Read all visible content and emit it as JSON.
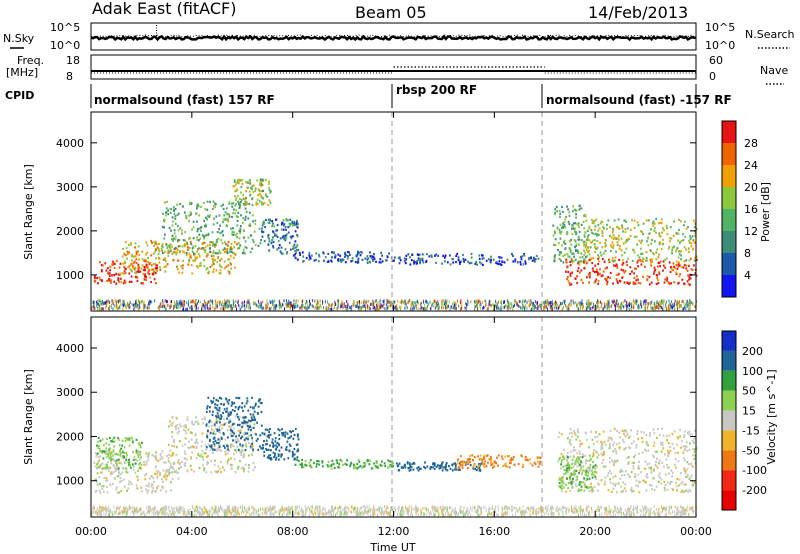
{
  "header": {
    "title": "Adak East (fitACF)",
    "beam": "Beam 05",
    "date": "14/Feb/2013"
  },
  "panels": {
    "nsky_label": "N.Sky",
    "nsearch_label": "N.Search",
    "nsky_ticks": [
      "10^5",
      "10^0"
    ],
    "nsearch_ticks": [
      "10^5",
      "10^0"
    ],
    "freq_label_1": "Freq.",
    "freq_label_2": "[MHz]",
    "freq_ticks": [
      "18",
      "8"
    ],
    "nave_label": "Nave",
    "nave_ticks": [
      "60",
      "0"
    ],
    "cpid_label": "CPID",
    "modes": [
      {
        "name": "normalsound (fast) 157 RF",
        "start_hour": 0,
        "end_hour": 12
      },
      {
        "name": "rbsp 200 RF",
        "start_hour": 12,
        "end_hour": 18
      },
      {
        "name": "normalsound (fast) -157 RF",
        "start_hour": 18,
        "end_hour": 24
      }
    ]
  },
  "chart_data": [
    {
      "type": "heatmap",
      "title": "",
      "xlabel": "Time UT",
      "ylabel": "Slant Range [km]",
      "xlim": [
        0,
        24
      ],
      "ylim": [
        180,
        4700
      ],
      "x_ticks": [
        "00:00",
        "04:00",
        "08:00",
        "12:00",
        "16:00",
        "20:00",
        "00:00"
      ],
      "x_tick_hours": [
        0,
        4,
        8,
        12,
        16,
        20,
        24
      ],
      "y_ticks": [
        1000,
        2000,
        3000,
        4000
      ],
      "colorbar": {
        "label": "Power [dB]",
        "ticks": [
          "4",
          "8",
          "12",
          "16",
          "20",
          "24",
          "28"
        ],
        "range": [
          0,
          32
        ],
        "colors": [
          "#1414f0",
          "#1e5aaa",
          "#3c8c78",
          "#50b464",
          "#8cc83c",
          "#f0a000",
          "#f06400",
          "#e61414"
        ]
      },
      "clusters": [
        {
          "t0": 0.1,
          "t1": 2.6,
          "r0": 820,
          "r1": 1350,
          "power": 29
        },
        {
          "t0": 1.2,
          "t1": 5.8,
          "r0": 1050,
          "r1": 1800,
          "power": 22
        },
        {
          "t0": 2.8,
          "t1": 6.5,
          "r0": 1500,
          "r1": 2700,
          "power": 14
        },
        {
          "t0": 5.6,
          "t1": 7.1,
          "r0": 2600,
          "r1": 3200,
          "power": 17
        },
        {
          "t0": 6.6,
          "t1": 8.2,
          "r0": 1500,
          "r1": 2300,
          "power": 9
        },
        {
          "t0": 8.0,
          "t1": 12.0,
          "r0": 1300,
          "r1": 1550,
          "power": 6
        },
        {
          "t0": 12.0,
          "t1": 17.8,
          "r0": 1250,
          "r1": 1500,
          "power": 5
        },
        {
          "t0": 18.3,
          "t1": 19.6,
          "r0": 1300,
          "r1": 2600,
          "power": 14
        },
        {
          "t0": 18.8,
          "t1": 24.0,
          "r0": 800,
          "r1": 1400,
          "power": 29
        },
        {
          "t0": 19.5,
          "t1": 24.0,
          "r0": 1300,
          "r1": 2300,
          "power": 18
        },
        {
          "t0": 0.0,
          "t1": 24.0,
          "r0": 250,
          "r1": 450,
          "power": 12
        }
      ]
    },
    {
      "type": "heatmap",
      "title": "",
      "xlabel": "Time UT",
      "ylabel": "Slant Range [km]",
      "xlim": [
        0,
        24
      ],
      "ylim": [
        180,
        4700
      ],
      "x_ticks": [
        "00:00",
        "04:00",
        "08:00",
        "12:00",
        "16:00",
        "20:00",
        "00:00"
      ],
      "x_tick_hours": [
        0,
        4,
        8,
        12,
        16,
        20,
        24
      ],
      "y_ticks": [
        1000,
        2000,
        3000,
        4000
      ],
      "colorbar": {
        "label": "Velocity [m s^-1]",
        "ticks": [
          "200",
          "100",
          "50",
          "15",
          "-15",
          "-50",
          "-100",
          "-200"
        ],
        "colors": [
          "#1430c8",
          "#1e6496",
          "#32a03c",
          "#8cd250",
          "#c8c8c0",
          "#f0b428",
          "#f07814",
          "#f02814",
          "#e60000"
        ]
      },
      "clusters": [
        {
          "t0": 0.1,
          "t1": 3.5,
          "r0": 750,
          "r1": 1700,
          "velocity": 0
        },
        {
          "t0": 0.2,
          "t1": 2.0,
          "r0": 1300,
          "r1": 2000,
          "velocity": 40
        },
        {
          "t0": 3.0,
          "t1": 6.5,
          "r0": 1200,
          "r1": 2500,
          "velocity": 0
        },
        {
          "t0": 4.5,
          "t1": 6.8,
          "r0": 1700,
          "r1": 2900,
          "velocity": 150
        },
        {
          "t0": 6.8,
          "t1": 8.2,
          "r0": 1500,
          "r1": 2200,
          "velocity": 120
        },
        {
          "t0": 8.0,
          "t1": 12.0,
          "r0": 1300,
          "r1": 1500,
          "velocity": 60
        },
        {
          "t0": 12.0,
          "t1": 15.5,
          "r0": 1250,
          "r1": 1450,
          "velocity": 120
        },
        {
          "t0": 14.5,
          "t1": 17.8,
          "r0": 1300,
          "r1": 1600,
          "velocity": -60
        },
        {
          "t0": 18.5,
          "t1": 24.0,
          "r0": 750,
          "r1": 2200,
          "velocity": 0
        },
        {
          "t0": 18.5,
          "t1": 20.0,
          "r0": 800,
          "r1": 1600,
          "velocity": 40
        },
        {
          "t0": 0.0,
          "t1": 24.0,
          "r0": 250,
          "r1": 450,
          "velocity": 0
        }
      ]
    }
  ]
}
